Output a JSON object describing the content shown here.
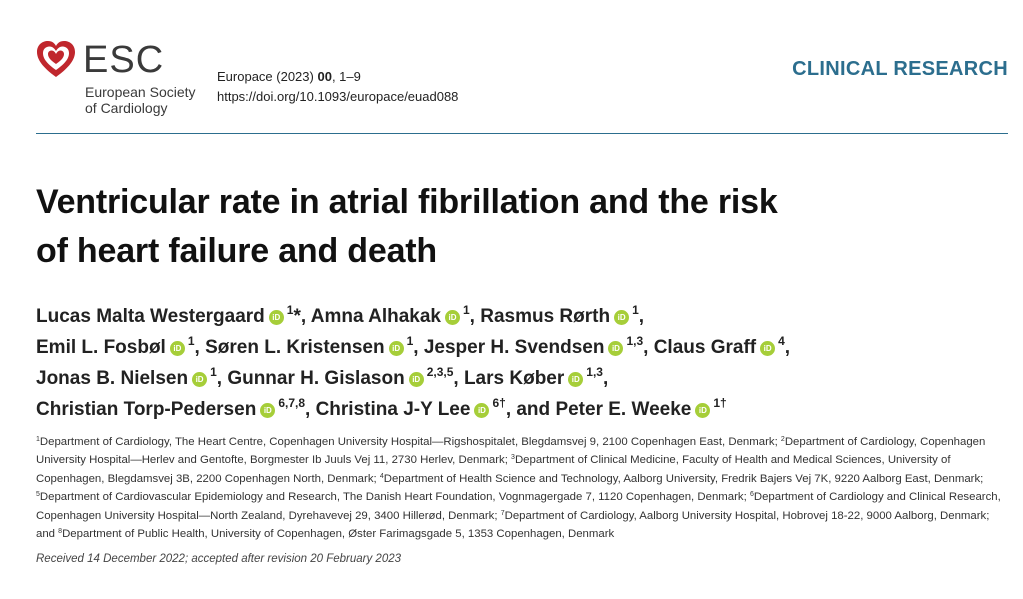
{
  "header": {
    "brand": "ESC",
    "brand_sub_1": "European Society",
    "brand_sub_2": "of Cardiology",
    "journal_name": "Europace (2023)",
    "journal_vol": "00",
    "journal_pages": ", 1–9",
    "doi": "https://doi.org/10.1093/europace/euad088",
    "section": "CLINICAL RESEARCH"
  },
  "colors": {
    "accent": "#2c6e8e",
    "logo_red": "#c0272d",
    "orcid": "#a6ce39"
  },
  "title_line1": "Ventricular rate in atrial fibrillation and the risk",
  "title_line2": "of heart failure and death",
  "orcid_glyph": "iD",
  "authors": [
    {
      "name": "Lucas Malta Westergaard",
      "sup": "1",
      "post": "*, "
    },
    {
      "name": "Amna Alhakak",
      "sup": "1",
      "post": ", "
    },
    {
      "name": "Rasmus Rørth",
      "sup": "1",
      "post": ","
    },
    {
      "name": "Emil L. Fosbøl",
      "sup": "1",
      "post": ", "
    },
    {
      "name": "Søren L. Kristensen",
      "sup": "1",
      "post": ", "
    },
    {
      "name": "Jesper H. Svendsen",
      "sup": "1,3",
      "post": ", "
    },
    {
      "name": "Claus Graff",
      "sup": "4",
      "post": ","
    },
    {
      "name": "Jonas B. Nielsen",
      "sup": "1",
      "post": ", "
    },
    {
      "name": "Gunnar H. Gislason",
      "sup": "2,3,5",
      "post": ", "
    },
    {
      "name": "Lars Køber",
      "sup": "1,3",
      "post": ","
    },
    {
      "name": "Christian Torp-Pedersen",
      "sup": "6,7,8",
      "post": ", "
    },
    {
      "name": "Christina J-Y Lee",
      "sup": "6†",
      "post": ", and "
    },
    {
      "name": "Peter E. Weeke",
      "sup": "1†",
      "post": ""
    }
  ],
  "affiliations": [
    {
      "sup": "1",
      "text": "Department of Cardiology, The Heart Centre, Copenhagen University Hospital—Rigshospitalet, Blegdamsvej 9, 2100 Copenhagen East, Denmark; "
    },
    {
      "sup": "2",
      "text": "Department of Cardiology, Copenhagen University Hospital—Herlev and Gentofte, Borgmester Ib Juuls Vej 11, 2730 Herlev, Denmark; "
    },
    {
      "sup": "3",
      "text": "Department of Clinical Medicine, Faculty of Health and Medical Sciences, University of Copenhagen, Blegdamsvej 3B, 2200 Copenhagen North,  Denmark; "
    },
    {
      "sup": "4",
      "text": "Department of Health Science and Technology, Aalborg University, Fredrik Bajers Vej 7K, 9220 Aalborg East, Denmark; "
    },
    {
      "sup": "5",
      "text": "Department of Cardiovascular Epidemiology and Research, The Danish Heart Foundation, Vognmagergade 7, 1120 Copenhagen, Denmark; "
    },
    {
      "sup": "6",
      "text": "Department of Cardiology and Clinical Research, Copenhagen University Hospital—North Zealand, Dyrehavevej 29, 3400 Hillerød, Denmark; "
    },
    {
      "sup": "7",
      "text": "Department of Cardiology, Aalborg University Hospital, Hobrovej 18-22, 9000 Aalborg, Denmark; and "
    },
    {
      "sup": "8",
      "text": "Department of Public Health, University of Copenhagen, Øster Farimagsgade 5, 1353 Copenhagen, Denmark"
    }
  ],
  "received": "Received 14 December 2022; accepted after revision 20 February 2023"
}
